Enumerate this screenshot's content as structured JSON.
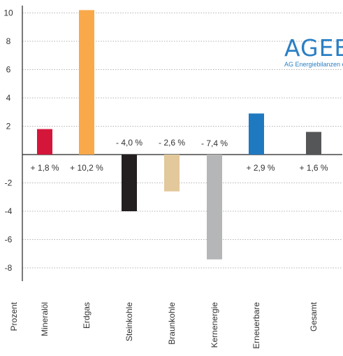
{
  "logo": {
    "main": "AGEB",
    "sub": "AG Energiebilanzen e.V."
  },
  "chart_data": {
    "type": "bar",
    "ylabel": "Prozent",
    "ylim": [
      -9,
      11
    ],
    "yticks": [
      10,
      8,
      6,
      4,
      2,
      -2,
      -4,
      -6,
      -8
    ],
    "ytick_labels": [
      "10",
      "8",
      "6",
      "4",
      "2",
      "-2",
      "-4",
      "-6",
      "-8"
    ],
    "grid": true,
    "categories": [
      "Mineralöl",
      "Erdgas",
      "Steinkohle",
      "Braunkohle",
      "Kernenergie",
      "Erneuerbare",
      "Gesamt"
    ],
    "values": [
      1.8,
      10.2,
      -4.0,
      -2.6,
      -7.4,
      2.9,
      1.6
    ],
    "data_labels": [
      "+ 1,8 %",
      "+ 10,2 %",
      "- 4,0 %",
      "- 2,6 %",
      "- 7,4 %",
      "+ 2,9 %",
      "+ 1,6 %"
    ],
    "colors": [
      "#d4163a",
      "#f9a94a",
      "#231f20",
      "#e2c89a",
      "#b5b6b8",
      "#1f79c1",
      "#555657"
    ]
  }
}
